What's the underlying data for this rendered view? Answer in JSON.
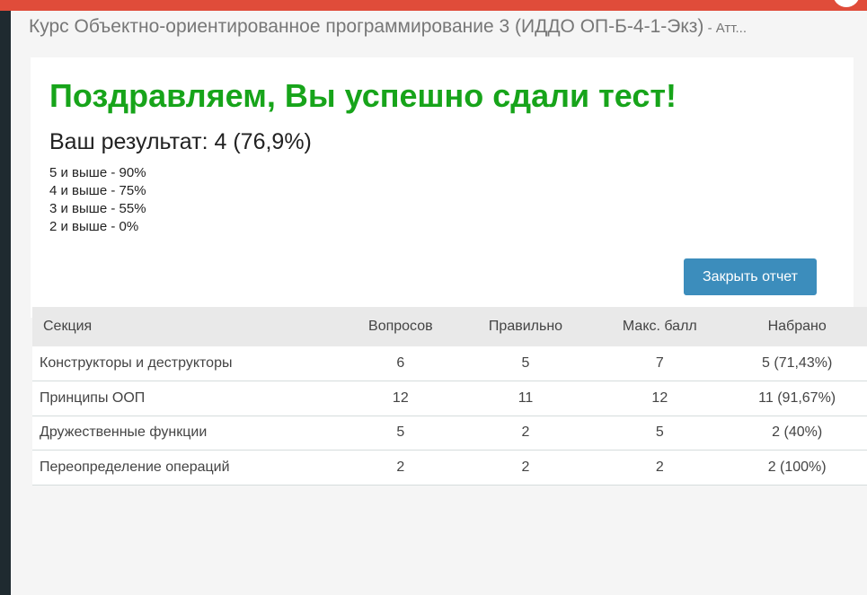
{
  "header": {
    "course_title": "Курс Объектно-ориентированное программирование 3 (ИДДО ОП-Б-4-1-Экз)",
    "course_suffix": " - Атт..."
  },
  "result": {
    "heading": "Поздравляем, Вы успешно сдали тест!",
    "score": "Ваш результат: 4 (76,9%)",
    "grades": [
      "5 и выше - 90%",
      "4 и выше - 75%",
      "3 и выше - 55%",
      "2 и выше - 0%"
    ],
    "close_button": "Закрыть отчет"
  },
  "table": {
    "headers": [
      "Секция",
      "Вопросов",
      "Правильно",
      "Макс. балл",
      "Набрано"
    ],
    "rows": [
      [
        "Конструкторы и деструкторы",
        "6",
        "5",
        "7",
        "5 (71,43%)"
      ],
      [
        "Принципы ООП",
        "12",
        "11",
        "12",
        "11 (91,67%)"
      ],
      [
        "Дружественные функции",
        "5",
        "2",
        "5",
        "2 (40%)"
      ],
      [
        "Переопределение операций",
        "2",
        "2",
        "2",
        "2 (100%)"
      ]
    ]
  },
  "colors": {
    "topbar": "#e04c3a",
    "success": "#17a41a",
    "button": "#3c8dbc"
  }
}
